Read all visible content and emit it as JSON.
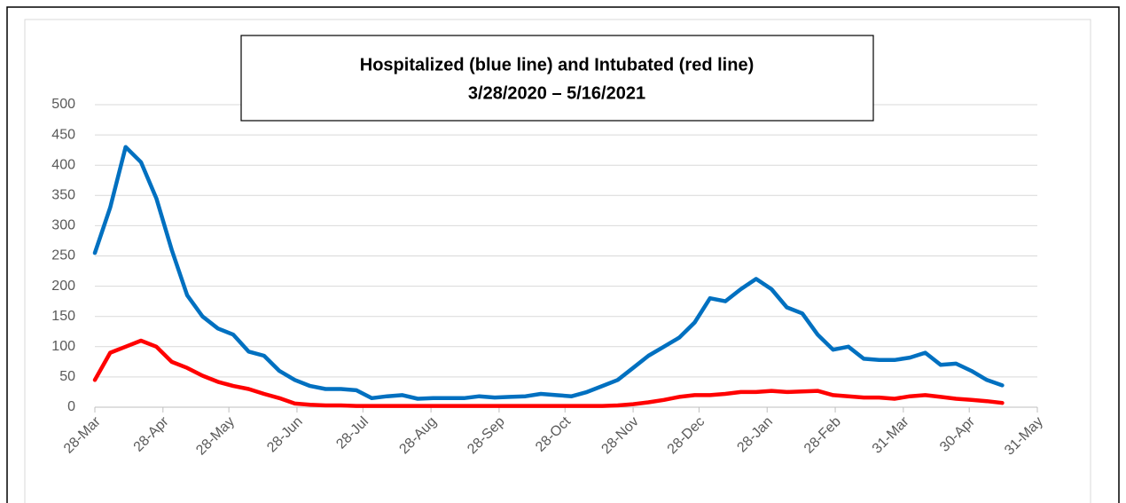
{
  "chart_data": {
    "type": "line",
    "title": "Hospitalized (blue line) and Intubated (red line)",
    "subtitle": "3/28/2020 – 5/16/2021",
    "x": [
      "2020-03-28",
      "2020-04-04",
      "2020-04-11",
      "2020-04-18",
      "2020-04-25",
      "2020-05-02",
      "2020-05-09",
      "2020-05-16",
      "2020-05-23",
      "2020-05-30",
      "2020-06-06",
      "2020-06-13",
      "2020-06-20",
      "2020-06-27",
      "2020-07-04",
      "2020-07-11",
      "2020-07-18",
      "2020-07-25",
      "2020-08-01",
      "2020-08-08",
      "2020-08-15",
      "2020-08-22",
      "2020-08-29",
      "2020-09-05",
      "2020-09-12",
      "2020-09-19",
      "2020-09-26",
      "2020-10-03",
      "2020-10-10",
      "2020-10-17",
      "2020-10-24",
      "2020-10-31",
      "2020-11-07",
      "2020-11-14",
      "2020-11-21",
      "2020-11-28",
      "2020-12-05",
      "2020-12-12",
      "2020-12-19",
      "2020-12-26",
      "2021-01-02",
      "2021-01-09",
      "2021-01-16",
      "2021-01-23",
      "2021-01-30",
      "2021-02-06",
      "2021-02-13",
      "2021-02-20",
      "2021-02-27",
      "2021-03-06",
      "2021-03-13",
      "2021-03-20",
      "2021-03-27",
      "2021-04-03",
      "2021-04-10",
      "2021-04-17",
      "2021-04-24",
      "2021-05-01",
      "2021-05-08",
      "2021-05-15"
    ],
    "series": [
      {
        "color": "#0070c0",
        "values": [
          255,
          330,
          430,
          405,
          345,
          260,
          185,
          150,
          130,
          120,
          92,
          85,
          60,
          45,
          35,
          30,
          30,
          28,
          15,
          18,
          20,
          14,
          15,
          15,
          15,
          18,
          16,
          17,
          18,
          22,
          20,
          18,
          25,
          35,
          45,
          65,
          85,
          100,
          115,
          140,
          180,
          175,
          195,
          212,
          195,
          165,
          155,
          120,
          95,
          100,
          80,
          78,
          78,
          82,
          90,
          70,
          72,
          60,
          45,
          36
        ]
      },
      {
        "color": "#ff0000",
        "values": [
          45,
          90,
          100,
          110,
          100,
          75,
          65,
          52,
          42,
          35,
          30,
          22,
          15,
          6,
          4,
          3,
          3,
          2,
          2,
          2,
          2,
          2,
          2,
          2,
          2,
          2,
          2,
          2,
          2,
          2,
          2,
          2,
          2,
          2,
          3,
          5,
          8,
          12,
          17,
          20,
          20,
          22,
          25,
          25,
          27,
          25,
          26,
          27,
          20,
          18,
          16,
          16,
          14,
          18,
          20,
          17,
          14,
          12,
          10,
          7
        ]
      }
    ],
    "xlim": [
      "2020-03-28",
      "2021-05-31"
    ],
    "xticks": [
      {
        "value": "2020-03-28",
        "label": "28-Mar"
      },
      {
        "value": "2020-04-28",
        "label": "28-Apr"
      },
      {
        "value": "2020-05-28",
        "label": "28-May"
      },
      {
        "value": "2020-06-28",
        "label": "28-Jun"
      },
      {
        "value": "2020-07-28",
        "label": "28-Jul"
      },
      {
        "value": "2020-08-28",
        "label": "28-Aug"
      },
      {
        "value": "2020-09-28",
        "label": "28-Sep"
      },
      {
        "value": "2020-10-28",
        "label": "28-Oct"
      },
      {
        "value": "2020-11-28",
        "label": "28-Nov"
      },
      {
        "value": "2020-12-28",
        "label": "28-Dec"
      },
      {
        "value": "2021-01-28",
        "label": "28-Jan"
      },
      {
        "value": "2021-02-28",
        "label": "28-Feb"
      },
      {
        "value": "2021-03-31",
        "label": "31-Mar"
      },
      {
        "value": "2021-04-30",
        "label": "30-Apr"
      },
      {
        "value": "2021-05-31",
        "label": "31-May"
      }
    ],
    "ylim": [
      0,
      500
    ],
    "yticks": [
      0,
      50,
      100,
      150,
      200,
      250,
      300,
      350,
      400,
      450,
      500
    ],
    "grid": true
  }
}
